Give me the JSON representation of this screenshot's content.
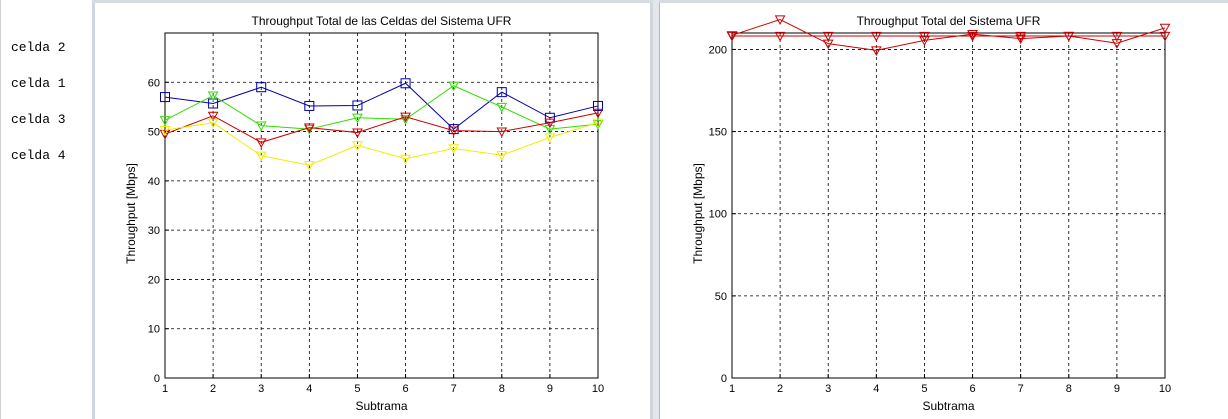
{
  "sidebar": {
    "labels": [
      "celda 2",
      "celda 1",
      "celda 3",
      "celda 4"
    ]
  },
  "chart_data": [
    {
      "type": "line",
      "title": "Throughput Total de las Celdas del Sistema UFR",
      "xlabel": "Subtrama",
      "ylabel": "Throughput [Mbps]",
      "x": [
        1,
        2,
        3,
        4,
        5,
        6,
        7,
        8,
        9,
        10
      ],
      "xlim": [
        1,
        10
      ],
      "ylim": [
        0,
        70
      ],
      "yticks": [
        0,
        10,
        20,
        30,
        40,
        50,
        60
      ],
      "grid": true,
      "series": [
        {
          "color": "#0000aa",
          "marker": "square",
          "values": [
            57,
            55.7,
            59,
            55.2,
            55.3,
            59.8,
            50.5,
            58,
            52.8,
            55.2
          ]
        },
        {
          "color": "#33dd00",
          "marker": "triangle-down",
          "values": [
            52.3,
            57.3,
            51.2,
            50.5,
            52.8,
            52.5,
            59.3,
            55,
            50.5,
            51.5
          ]
        },
        {
          "color": "#cc0000",
          "marker": "triangle-down",
          "values": [
            49.5,
            53.2,
            47.8,
            50.8,
            49.8,
            53,
            50.2,
            50,
            51.8,
            53.8
          ]
        },
        {
          "color": "#eeee00",
          "marker": "triangle-down",
          "values": [
            50.3,
            51.8,
            45.1,
            43.2,
            47.2,
            44.5,
            46.6,
            45.2,
            48.8,
            51.8
          ]
        }
      ]
    },
    {
      "type": "line",
      "title": "Throughput Total del Sistema UFR",
      "xlabel": "Subtrama",
      "ylabel": "Throughput [Mbps]",
      "x": [
        1,
        2,
        3,
        4,
        5,
        6,
        7,
        8,
        9,
        10
      ],
      "xlim": [
        1,
        10
      ],
      "ylim": [
        0,
        210
      ],
      "yticks": [
        0,
        50,
        100,
        150,
        200
      ],
      "grid": true,
      "series": [
        {
          "color": "#cc0000",
          "marker": "triangle-down",
          "values": [
            208.6,
            218.2,
            203.5,
            199.4,
            205.5,
            209.3,
            206.6,
            208.2,
            203.8,
            213.1
          ]
        },
        {
          "color": "#cc0000",
          "marker": "triangle-down",
          "values": [
            208.2,
            208.2,
            208.2,
            208.2,
            208.2,
            208.2,
            208.2,
            208.2,
            208.2,
            208.2
          ]
        }
      ]
    }
  ]
}
